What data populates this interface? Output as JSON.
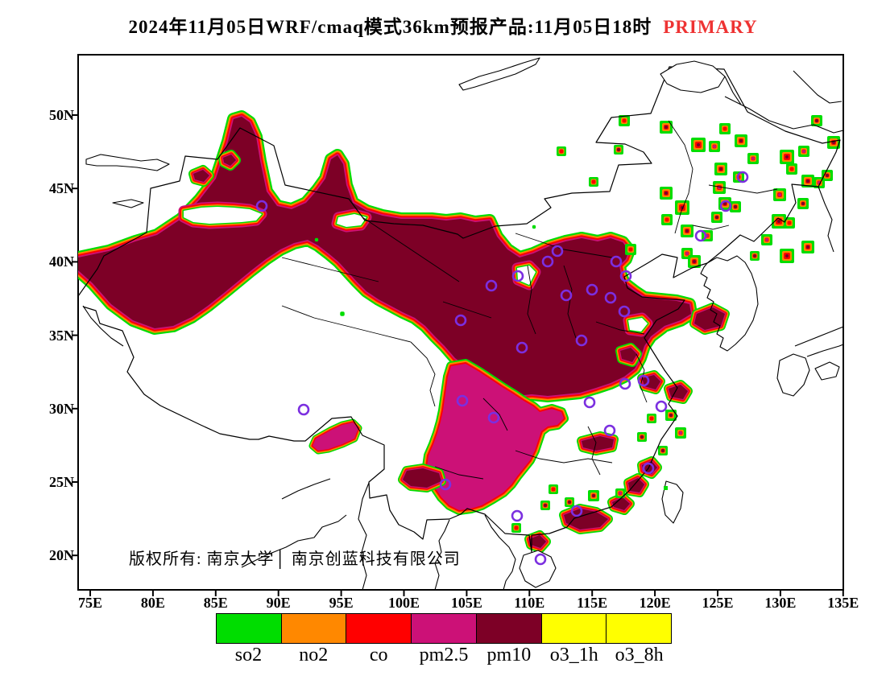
{
  "title": {
    "text": "2024年11月05日WRF/cmaq模式36km预报产品:11月05日18时",
    "highlight": "PRIMARY",
    "highlight_color": "#ee3333"
  },
  "copyright": "版权所有: 南京大学│ 南京创蓝科技有限公司",
  "axes": {
    "x_ticks": [
      "75E",
      "80E",
      "85E",
      "90E",
      "95E",
      "100E",
      "105E",
      "110E",
      "115E",
      "120E",
      "125E",
      "130E",
      "135E"
    ],
    "y_ticks": [
      "50N",
      "45N",
      "40N",
      "35N",
      "30N",
      "25N",
      "20N"
    ]
  },
  "legend": {
    "items": [
      {
        "label": "so2",
        "color": "#00dd00"
      },
      {
        "label": "no2",
        "color": "#ff8800"
      },
      {
        "label": "co",
        "color": "#ff0000"
      },
      {
        "label": "pm2.5",
        "color": "#cc1177"
      },
      {
        "label": "pm10",
        "color": "#7d0026"
      },
      {
        "label": "o3_1h",
        "color": "#ffff00"
      },
      {
        "label": "o3_8h",
        "color": "#ffff00"
      }
    ]
  },
  "palette": {
    "so2": "#00dd00",
    "no2": "#ff8800",
    "co": "#ff0000",
    "pm25": "#cc1177",
    "pm10": "#7d0026",
    "o3": "#ffff00",
    "marker": "#7b2fe0",
    "border": "#000000"
  },
  "chart_data": {
    "type": "map",
    "extent": {
      "lon": [
        "75E",
        "135E"
      ],
      "lat": [
        "20N",
        "50N"
      ]
    },
    "legend_pollutants": [
      "so2",
      "no2",
      "co",
      "pm2.5",
      "pm10",
      "o3_1h",
      "o3_8h"
    ],
    "dominant_regions": [
      {
        "pollutant": "pm10",
        "color": "#7d0026",
        "area": "large mass over Xinjiang / Hexi corridor / North China Plain and Shandong"
      },
      {
        "pollutant": "pm2.5",
        "color": "#cc1177",
        "area": "Sichuan-Chongqing-Guizhou-Hunan block plus small SE-Tibet patch"
      },
      {
        "pollutant": "so2,no2,co",
        "area": "thin green/orange/red transition rings around regions and scattered city hotspots in Northeast and coastal China"
      }
    ],
    "station_markers": "open purple circles scattered over central and eastern China"
  }
}
